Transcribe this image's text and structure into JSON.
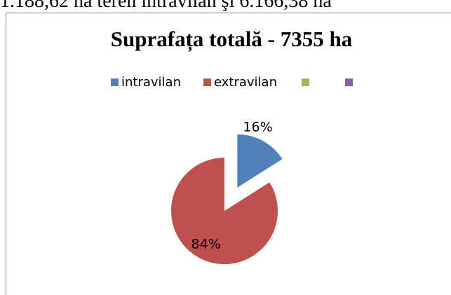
{
  "document_text": "1.188,62 ha teren intravilan şi 6.166,38 ha",
  "chart_data": {
    "type": "pie",
    "title": "Suprafața totală - 7355 ha",
    "categories": [
      "intravilan",
      "extravilan",
      null,
      null
    ],
    "values": [
      16,
      84,
      null,
      null
    ],
    "value_labels": [
      "16%",
      "84%",
      null,
      null
    ],
    "colors": [
      "#4f81bd",
      "#c0504d",
      "#9bbb59",
      "#8064a2"
    ],
    "legend": "top"
  }
}
